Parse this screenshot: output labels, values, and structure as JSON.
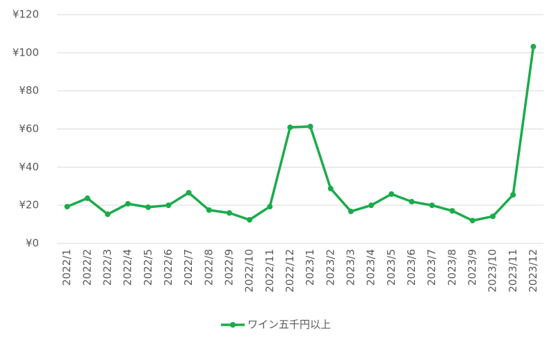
{
  "chart_data": {
    "type": "line",
    "categories": [
      "2022/1",
      "2022/2",
      "2022/3",
      "2022/4",
      "2022/5",
      "2022/6",
      "2022/7",
      "2022/8",
      "2022/9",
      "2022/10",
      "2022/11",
      "2022/12",
      "2023/1",
      "2023/2",
      "2023/3",
      "2023/4",
      "2023/5",
      "2023/6",
      "2023/7",
      "2023/8",
      "2023/9",
      "2023/10",
      "2023/11",
      "2023/12"
    ],
    "series": [
      {
        "name": "ワイン五千円以上",
        "color": "#1aab4b",
        "values": [
          19.3,
          23.7,
          15.3,
          20.8,
          19,
          20,
          26.6,
          17.5,
          16,
          12.4,
          19.3,
          60.9,
          61.3,
          28.8,
          16.8,
          20,
          25.9,
          21.9,
          20,
          17.1,
          12,
          14.2,
          25.5,
          103.2
        ]
      }
    ],
    "ylim": [
      0,
      120
    ],
    "yticks": [
      {
        "value": 0,
        "label": "¥0"
      },
      {
        "value": 20,
        "label": "¥20"
      },
      {
        "value": 40,
        "label": "¥40"
      },
      {
        "value": 60,
        "label": "¥60"
      },
      {
        "value": 80,
        "label": "¥80"
      },
      {
        "value": 100,
        "label": "¥100"
      },
      {
        "value": 120,
        "label": "¥120"
      }
    ],
    "grid": true,
    "legend": "bottom"
  }
}
